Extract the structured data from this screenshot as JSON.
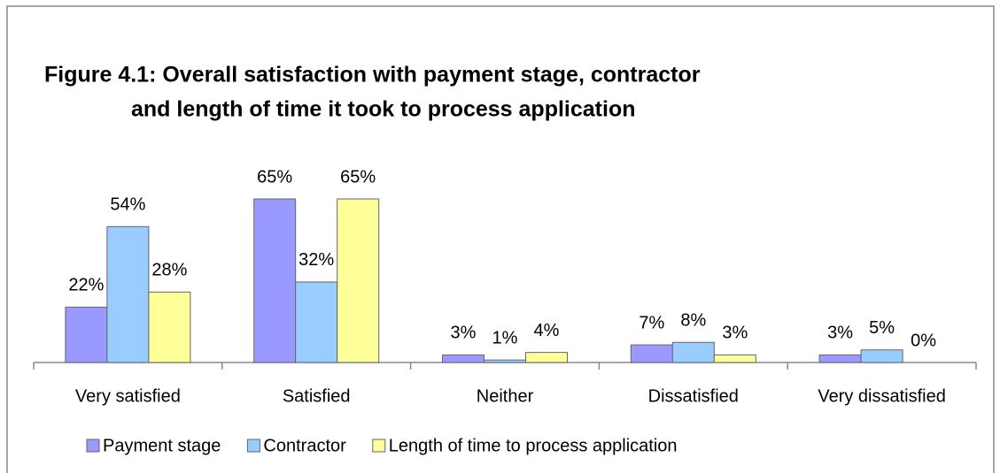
{
  "chart_data": {
    "type": "bar",
    "title_lines": [
      "Figure 4.1:  Overall satisfaction with payment stage, contractor",
      "and length of time it took to process application"
    ],
    "categories": [
      "Very satisfied",
      "Satisfied",
      "Neither",
      "Dissatisfied",
      "Very dissatisfied"
    ],
    "series": [
      {
        "name": "Payment stage",
        "color": "#9999ff",
        "values": [
          22,
          65,
          3,
          7,
          3
        ],
        "value_labels": [
          "22%",
          "65%",
          "3%",
          "7%",
          "3%"
        ]
      },
      {
        "name": "Contractor",
        "color": "#99ccff",
        "values": [
          54,
          32,
          1,
          8,
          5
        ],
        "value_labels": [
          "54%",
          "32%",
          "1%",
          "8%",
          "5%"
        ]
      },
      {
        "name": "Length of time to process application",
        "color": "#ffff99",
        "values": [
          28,
          65,
          4,
          3,
          0
        ],
        "value_labels": [
          "28%",
          "65%",
          "4%",
          "3%",
          "0%"
        ]
      }
    ],
    "legend": "bottom"
  }
}
